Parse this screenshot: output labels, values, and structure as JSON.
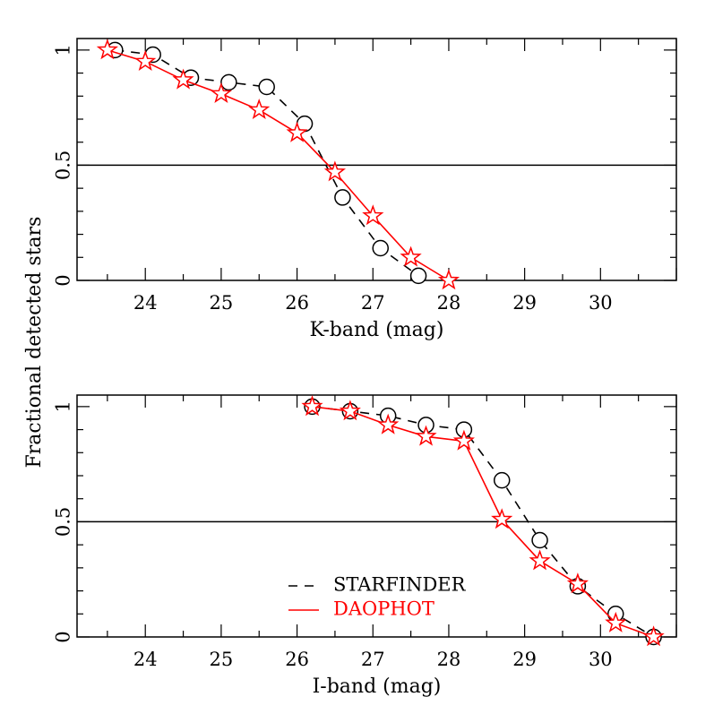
{
  "ylabel": "Fractional detected stars",
  "legend": {
    "position": "lower-left",
    "entries": [
      {
        "label": "STARFINDER",
        "color": "#000000",
        "dash": "dashed",
        "marker": "circle"
      },
      {
        "label": "DAOPHOT",
        "color": "#ff0000",
        "dash": "solid",
        "marker": "star"
      }
    ]
  },
  "chart_data": [
    {
      "type": "line",
      "panel": "top",
      "xlabel": "K-band (mag)",
      "xlim": [
        23.1,
        31.0
      ],
      "ylim": [
        0,
        1.05
      ],
      "xticks": [
        24,
        25,
        26,
        27,
        28,
        29,
        30
      ],
      "yticks": [
        0,
        0.5,
        1
      ],
      "xtick_labels": [
        "24",
        "25",
        "26",
        "27",
        "28",
        "29",
        "30"
      ],
      "ytick_labels": [
        "0",
        "0.5",
        "1"
      ],
      "reference_line_y": 0.5,
      "series": [
        {
          "name": "STARFINDER",
          "color": "#000000",
          "style": "dashed",
          "marker": "circle",
          "x": [
            23.6,
            24.1,
            24.6,
            25.1,
            25.6,
            26.1,
            26.6,
            27.1,
            27.6
          ],
          "y": [
            1.0,
            0.98,
            0.88,
            0.86,
            0.84,
            0.68,
            0.36,
            0.14,
            0.02
          ]
        },
        {
          "name": "DAOPHOT",
          "color": "#ff0000",
          "style": "solid",
          "marker": "star",
          "x": [
            23.5,
            24.0,
            24.5,
            25.0,
            25.5,
            26.0,
            26.5,
            27.0,
            27.5,
            28.0
          ],
          "y": [
            1.0,
            0.95,
            0.87,
            0.81,
            0.74,
            0.64,
            0.47,
            0.28,
            0.1,
            0.0
          ]
        }
      ]
    },
    {
      "type": "line",
      "panel": "bottom",
      "xlabel": "I-band (mag)",
      "xlim": [
        23.1,
        31.0
      ],
      "ylim": [
        0,
        1.05
      ],
      "xticks": [
        24,
        25,
        26,
        27,
        28,
        29,
        30
      ],
      "yticks": [
        0,
        0.5,
        1
      ],
      "xtick_labels": [
        "24",
        "25",
        "26",
        "27",
        "28",
        "29",
        "30"
      ],
      "ytick_labels": [
        "0",
        "0.5",
        "1"
      ],
      "reference_line_y": 0.5,
      "series": [
        {
          "name": "STARFINDER",
          "color": "#000000",
          "style": "dashed",
          "marker": "circle",
          "x": [
            26.2,
            26.7,
            27.2,
            27.7,
            28.2,
            28.7,
            29.2,
            29.7,
            30.2,
            30.7
          ],
          "y": [
            1.0,
            0.98,
            0.96,
            0.92,
            0.9,
            0.68,
            0.42,
            0.22,
            0.1,
            0.0
          ]
        },
        {
          "name": "DAOPHOT",
          "color": "#ff0000",
          "style": "solid",
          "marker": "star",
          "x": [
            26.2,
            26.7,
            27.2,
            27.7,
            28.2,
            28.7,
            29.2,
            29.7,
            30.2,
            30.7
          ],
          "y": [
            1.0,
            0.98,
            0.92,
            0.87,
            0.85,
            0.51,
            0.33,
            0.23,
            0.06,
            0.0
          ]
        }
      ]
    }
  ]
}
